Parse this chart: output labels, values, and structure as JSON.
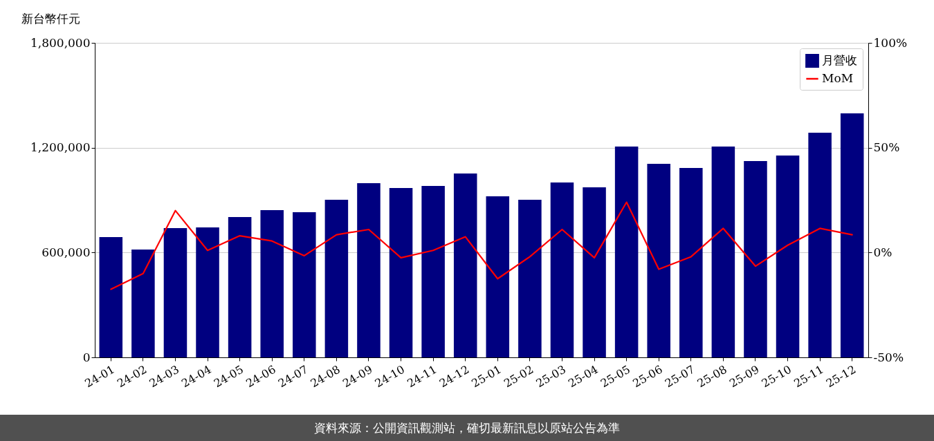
{
  "chart_data": {
    "type": "bar",
    "ylabel": "新台幣仟元",
    "categories": [
      "24-01",
      "24-02",
      "24-03",
      "24-04",
      "24-05",
      "24-06",
      "24-07",
      "24-08",
      "24-09",
      "24-10",
      "24-11",
      "24-12",
      "25-01",
      "25-02",
      "25-03",
      "25-04",
      "25-05",
      "25-06",
      "25-07",
      "25-08",
      "25-09",
      "25-10",
      "25-11",
      "25-12"
    ],
    "series": [
      {
        "name": "月營收",
        "color": "#000080",
        "values": [
          688000,
          617000,
          740000,
          744000,
          803000,
          843000,
          831000,
          902000,
          997000,
          969000,
          981000,
          1052000,
          922000,
          902000,
          1001000,
          973000,
          1207000,
          1108000,
          1084000,
          1207000,
          1124000,
          1155000,
          1286000,
          1396000
        ]
      },
      {
        "name": "MoM",
        "type": "line",
        "axis": "y2",
        "color": "#ff0000",
        "values": [
          -17.5,
          -10,
          20,
          1,
          8,
          5.5,
          -1.5,
          8.5,
          11,
          -2.5,
          1,
          7.5,
          -12.5,
          -2,
          11,
          -2.5,
          24,
          -8,
          -2,
          11.5,
          -6.5,
          3.5,
          11.5,
          8.5
        ]
      }
    ],
    "ylim": [
      0,
      1800000
    ],
    "yticks": [
      {
        "value": 0,
        "label": "0"
      },
      {
        "value": 600000,
        "label": "600,000"
      },
      {
        "value": 1200000,
        "label": "1,200,000"
      },
      {
        "value": 1800000,
        "label": "1,800,000"
      }
    ],
    "y2lim": [
      -50,
      100
    ],
    "y2ticks": [
      {
        "value": -50,
        "label": "-50%"
      },
      {
        "value": 0,
        "label": "0%"
      },
      {
        "value": 50,
        "label": "50%"
      },
      {
        "value": 100,
        "label": "100%"
      }
    ],
    "grid": "y",
    "legend": "top right",
    "line_style": "solid",
    "annotations": [
      "資料來源：公開資訊觀測站，確切最新訊息以原站公告為準"
    ]
  }
}
